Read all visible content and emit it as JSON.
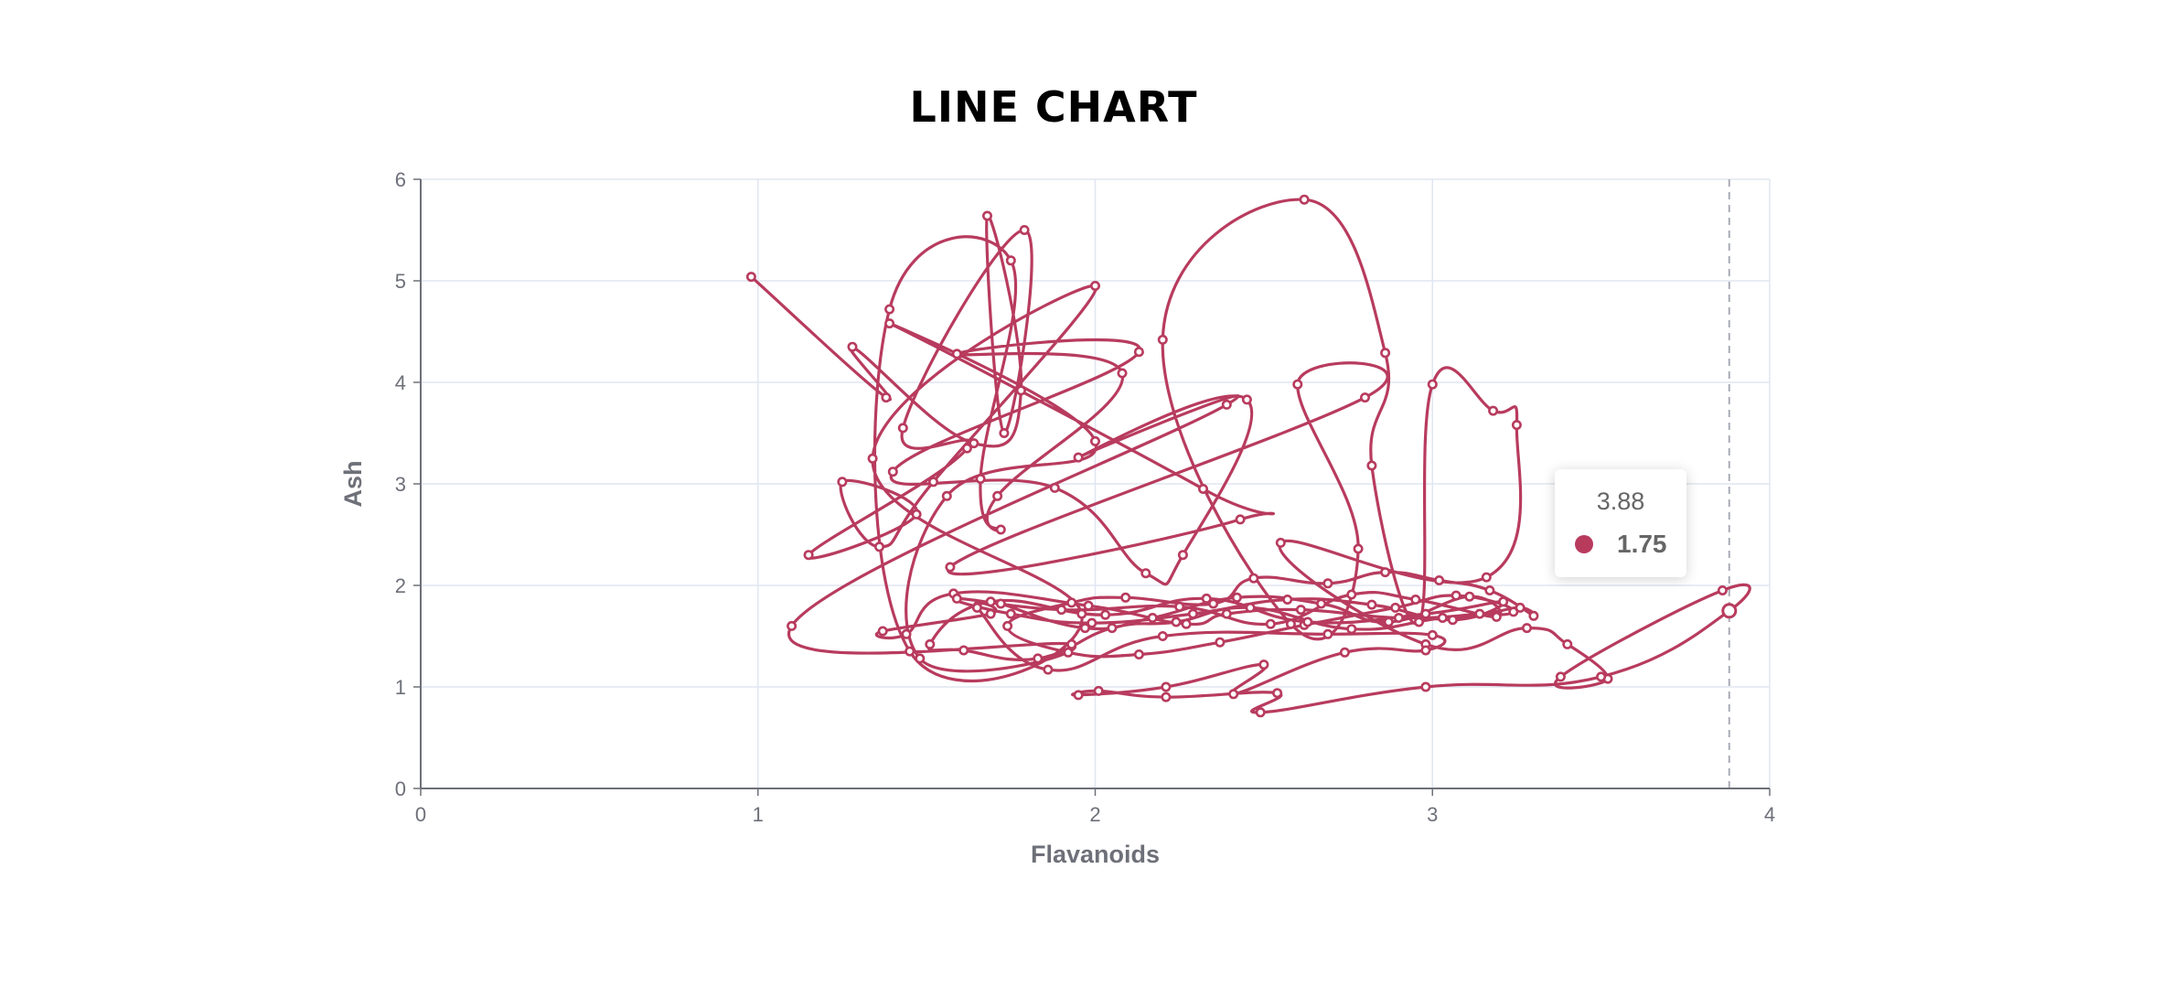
{
  "chart_data": {
    "type": "line",
    "title": "LINE CHART",
    "xlabel": "Flavanoids",
    "ylabel": "Ash",
    "xlim": [
      0,
      4
    ],
    "ylim": [
      0,
      6
    ],
    "x_ticks": [
      "0",
      "1",
      "2",
      "3",
      "4"
    ],
    "y_ticks": [
      "0",
      "1",
      "2",
      "3",
      "4",
      "5",
      "6"
    ],
    "grid": true,
    "line_color": "#b83b5e",
    "series": [
      {
        "points": [
          [
            0.98,
            5.04
          ],
          [
            1.38,
            3.85
          ],
          [
            1.28,
            4.35
          ],
          [
            1.64,
            3.4
          ],
          [
            1.78,
            3.92
          ],
          [
            1.68,
            5.64
          ],
          [
            1.73,
            3.5
          ],
          [
            1.79,
            5.5
          ],
          [
            1.43,
            3.55
          ],
          [
            1.62,
            3.35
          ],
          [
            1.15,
            2.3
          ],
          [
            1.47,
            2.7
          ],
          [
            1.25,
            3.02
          ],
          [
            1.36,
            2.38
          ],
          [
            1.52,
            3.02
          ],
          [
            2.0,
            4.95
          ],
          [
            1.34,
            3.25
          ],
          [
            1.96,
            1.72
          ],
          [
            1.45,
            1.35
          ],
          [
            1.39,
            4.72
          ],
          [
            1.75,
            5.2
          ],
          [
            1.66,
            3.05
          ],
          [
            1.72,
            2.55
          ],
          [
            1.71,
            2.88
          ],
          [
            2.08,
            4.09
          ],
          [
            1.59,
            4.28
          ],
          [
            2.13,
            4.3
          ],
          [
            1.4,
            3.12
          ],
          [
            1.88,
            2.96
          ],
          [
            2.15,
            2.12
          ],
          [
            2.26,
            2.3
          ],
          [
            2.45,
            3.83
          ],
          [
            1.95,
            3.26
          ],
          [
            2.39,
            3.78
          ],
          [
            1.1,
            1.6
          ],
          [
            1.93,
            1.42
          ],
          [
            1.48,
            1.28
          ],
          [
            1.56,
            2.88
          ],
          [
            2.0,
            3.42
          ],
          [
            1.39,
            4.58
          ],
          [
            2.32,
            2.95
          ],
          [
            2.43,
            2.65
          ],
          [
            1.57,
            2.18
          ],
          [
            2.8,
            3.85
          ],
          [
            2.6,
            3.98
          ],
          [
            2.78,
            2.36
          ],
          [
            2.58,
            1.62
          ],
          [
            2.2,
            4.42
          ],
          [
            2.62,
            5.8
          ],
          [
            2.86,
            4.29
          ],
          [
            2.82,
            3.18
          ],
          [
            2.96,
            1.64
          ],
          [
            3.0,
            3.98
          ],
          [
            3.18,
            3.72
          ],
          [
            3.25,
            3.58
          ],
          [
            3.16,
            2.08
          ],
          [
            2.55,
            2.42
          ],
          [
            2.98,
            1.42
          ],
          [
            3.28,
            1.58
          ],
          [
            3.4,
            1.42
          ],
          [
            3.52,
            1.08
          ],
          [
            3.38,
            1.1
          ],
          [
            3.86,
            1.95
          ],
          [
            3.88,
            1.75
          ],
          [
            3.5,
            1.1
          ],
          [
            2.98,
            1.0
          ],
          [
            2.49,
            0.75
          ],
          [
            2.54,
            0.94
          ],
          [
            2.21,
            0.9
          ],
          [
            2.01,
            0.96
          ],
          [
            1.95,
            0.92
          ],
          [
            2.21,
            1.0
          ],
          [
            2.5,
            1.22
          ],
          [
            2.41,
            0.93
          ],
          [
            2.74,
            1.34
          ],
          [
            2.98,
            1.36
          ],
          [
            3.0,
            1.51
          ],
          [
            2.69,
            1.52
          ],
          [
            2.2,
            1.5
          ],
          [
            1.86,
            1.17
          ],
          [
            1.65,
            1.78
          ],
          [
            1.69,
            1.72
          ],
          [
            1.37,
            1.55
          ],
          [
            1.44,
            1.52
          ],
          [
            1.58,
            1.92
          ],
          [
            1.98,
            1.8
          ],
          [
            2.27,
            1.62
          ],
          [
            2.39,
            1.72
          ],
          [
            2.61,
            1.76
          ],
          [
            2.9,
            1.68
          ],
          [
            3.14,
            1.72
          ],
          [
            3.26,
            1.78
          ],
          [
            3.3,
            1.7
          ],
          [
            3.17,
            1.95
          ],
          [
            3.02,
            2.05
          ],
          [
            2.86,
            2.13
          ],
          [
            2.69,
            2.02
          ],
          [
            2.47,
            2.07
          ],
          [
            2.35,
            1.82
          ],
          [
            2.09,
            1.88
          ],
          [
            1.93,
            1.83
          ],
          [
            1.74,
            1.6
          ],
          [
            1.92,
            1.34
          ],
          [
            2.13,
            1.32
          ],
          [
            2.37,
            1.44
          ],
          [
            2.62,
            1.61
          ],
          [
            2.89,
            1.78
          ],
          [
            3.07,
            1.9
          ],
          [
            3.24,
            1.74
          ],
          [
            3.03,
            1.68
          ],
          [
            2.76,
            1.57
          ],
          [
            2.46,
            1.78
          ],
          [
            2.24,
            1.64
          ],
          [
            2.05,
            1.58
          ],
          [
            1.83,
            1.28
          ],
          [
            1.61,
            1.36
          ],
          [
            1.51,
            1.42
          ],
          [
            1.69,
            1.84
          ],
          [
            2.03,
            1.71
          ],
          [
            2.33,
            1.87
          ],
          [
            2.63,
            1.64
          ],
          [
            2.98,
            1.72
          ],
          [
            3.21,
            1.84
          ],
          [
            3.06,
            1.66
          ],
          [
            2.82,
            1.81
          ],
          [
            2.57,
            1.86
          ],
          [
            2.29,
            1.72
          ],
          [
            1.99,
            1.63
          ],
          [
            1.75,
            1.72
          ],
          [
            1.59,
            1.87
          ],
          [
            1.9,
            1.76
          ],
          [
            2.25,
            1.79
          ],
          [
            2.52,
            1.62
          ],
          [
            2.76,
            1.91
          ],
          [
            2.95,
            1.86
          ],
          [
            3.19,
            1.69
          ],
          [
            3.11,
            1.89
          ],
          [
            2.87,
            1.64
          ],
          [
            2.67,
            1.82
          ],
          [
            2.42,
            1.88
          ],
          [
            2.17,
            1.68
          ],
          [
            1.97,
            1.58
          ],
          [
            1.72,
            1.82
          ]
        ]
      }
    ],
    "tooltip": {
      "x": "3.88",
      "value": "1.75"
    }
  }
}
